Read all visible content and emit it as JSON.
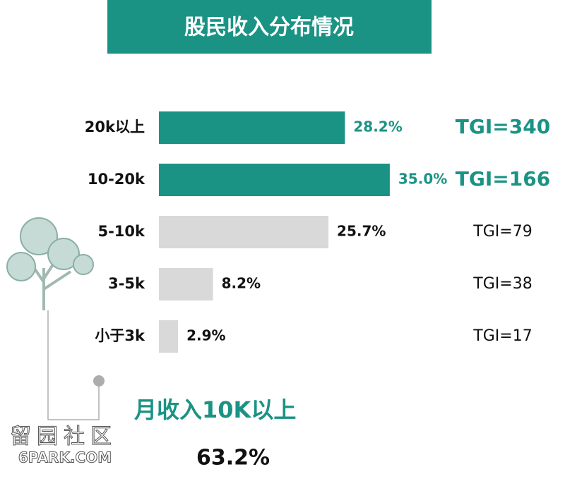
{
  "chart_data": {
    "type": "bar",
    "orientation": "horizontal",
    "title": "股民收入分布情况",
    "categories": [
      "20k以上",
      "10-20k",
      "5-10k",
      "3-5k",
      "小于3k"
    ],
    "values": [
      28.2,
      35.0,
      25.7,
      8.2,
      2.9
    ],
    "value_labels": [
      "28.2%",
      "35.0%",
      "25.7%",
      "8.2%",
      "2.9%"
    ],
    "colors": [
      "#1a9384",
      "#1a9384",
      "#d9d9d9",
      "#d9d9d9",
      "#d9d9d9"
    ],
    "label_colors": [
      "#1a9384",
      "#1a9384",
      "#111111",
      "#111111",
      "#111111"
    ],
    "tgi_labels": [
      "TGI=340",
      "TGI=166",
      "TGI=79",
      "TGI=38",
      "TGI=17"
    ],
    "summary": {
      "label": "月收入10K以上",
      "value": 63.2,
      "value_label": "63.2%"
    },
    "watermark": [
      "留园社区",
      "6PARK.COM"
    ]
  }
}
